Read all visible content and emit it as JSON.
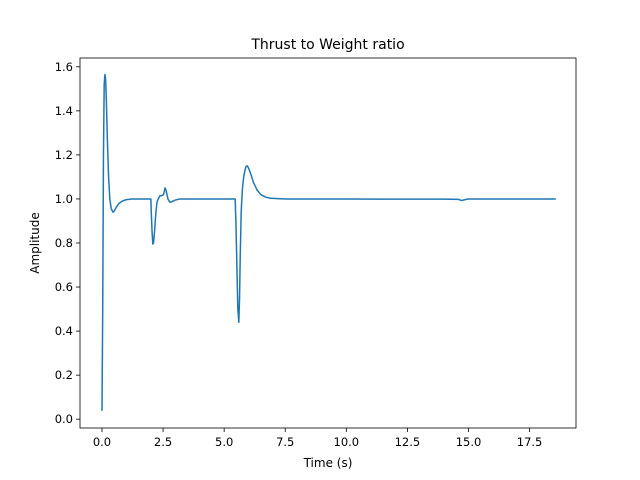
{
  "chart_data": {
    "type": "line",
    "title": "Thrust to Weight ratio",
    "xlabel": "Time (s)",
    "ylabel": "Amplitude",
    "xlim": [
      -0.9,
      19.4
    ],
    "ylim": [
      -0.04,
      1.64
    ],
    "xticks": [
      0,
      2.5,
      5,
      7.5,
      10,
      12.5,
      15,
      17.5
    ],
    "xtick_labels": [
      "0.0",
      "2.5",
      "5.0",
      "7.5",
      "10.0",
      "12.5",
      "15.0",
      "17.5"
    ],
    "yticks": [
      0,
      0.2,
      0.4,
      0.6,
      0.8,
      1.0,
      1.2,
      1.4,
      1.6
    ],
    "ytick_labels": [
      "0.0",
      "0.2",
      "0.4",
      "0.6",
      "0.8",
      "1.0",
      "1.2",
      "1.4",
      "1.6"
    ],
    "grid": false,
    "series": [
      {
        "color": "#1f77b4",
        "x": [
          0,
          0.03,
          0.06,
          0.09,
          0.12,
          0.15,
          0.18,
          0.22,
          0.27,
          0.32,
          0.38,
          0.45,
          0.5,
          0.55,
          0.6,
          0.7,
          0.8,
          0.9,
          1.0,
          1.1,
          1.2,
          1.4,
          1.6,
          1.8,
          2.0,
          2.02,
          2.05,
          2.08,
          2.11,
          2.15,
          2.2,
          2.25,
          2.3,
          2.38,
          2.45,
          2.52,
          2.58,
          2.62,
          2.66,
          2.7,
          2.75,
          2.8,
          2.9,
          3.0,
          3.2,
          3.5,
          4.0,
          4.5,
          5.0,
          5.45,
          5.48,
          5.52,
          5.56,
          5.6,
          5.63,
          5.66,
          5.7,
          5.75,
          5.8,
          5.85,
          5.9,
          5.95,
          6.0,
          6.1,
          6.2,
          6.35,
          6.5,
          6.7,
          6.9,
          7.1,
          7.3,
          7.6,
          8.0,
          9.0,
          10.0,
          12.0,
          14.0,
          14.6,
          14.7,
          14.8,
          14.9,
          15.0,
          15.3,
          16.0,
          17.0,
          18.0,
          18.55
        ],
        "y": [
          0.04,
          0.5,
          1.2,
          1.52,
          1.565,
          1.54,
          1.44,
          1.27,
          1.1,
          1.0,
          0.955,
          0.94,
          0.945,
          0.955,
          0.965,
          0.98,
          0.988,
          0.993,
          0.997,
          0.998,
          1.0,
          1.0,
          1.0,
          1.0,
          1.0,
          0.93,
          0.85,
          0.795,
          0.8,
          0.85,
          0.93,
          0.985,
          1.0,
          1.015,
          1.015,
          1.02,
          1.05,
          1.04,
          1.02,
          1.0,
          0.99,
          0.985,
          0.99,
          0.995,
          1.0,
          1.0,
          1.0,
          1.0,
          1.0,
          1.0,
          0.9,
          0.7,
          0.5,
          0.44,
          0.55,
          0.75,
          0.95,
          1.05,
          1.1,
          1.13,
          1.148,
          1.15,
          1.14,
          1.11,
          1.075,
          1.04,
          1.02,
          1.008,
          1.003,
          1.002,
          1.001,
          1.0,
          1.0,
          1.0,
          1.0,
          0.999,
          0.999,
          0.998,
          0.993,
          0.995,
          0.998,
          1.0,
          1.0,
          1.0,
          1.0,
          1.0,
          1.0
        ]
      }
    ]
  }
}
